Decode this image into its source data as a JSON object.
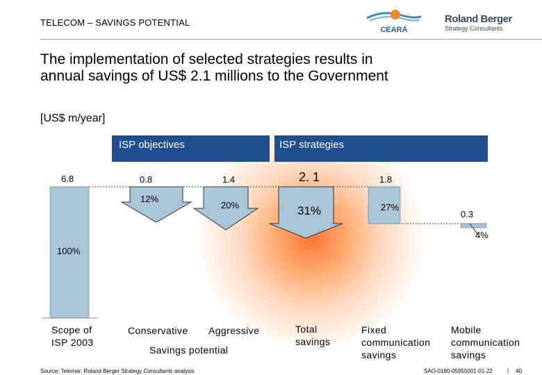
{
  "header": {
    "section_title": "TELECOM – SAVINGS POTENTIAL",
    "logo_ceara_text": "CEARÁ",
    "logo_rb_line1": "Roland Berger",
    "logo_rb_line2": "Strategy Consultants"
  },
  "headline": {
    "line1": "The implementation of selected strategies results in",
    "line2": "annual savings of US$ 2.1 millions to the Government"
  },
  "unit_label": "[US$ m/year]",
  "bands": {
    "objectives": "ISP objectives",
    "strategies": "ISP strategies"
  },
  "chart_data": {
    "type": "bar",
    "subtype": "waterfall",
    "unit": "[US$ m/year]",
    "categories": [
      "Scope of ISP 2003",
      "Conservative",
      "Aggressive",
      "Total savings",
      "Fixed communication savings",
      "Mobile communication savings"
    ],
    "values": [
      6.8,
      0.8,
      1.4,
      2.1,
      1.8,
      0.3
    ],
    "value_labels": [
      "6.8",
      "0.8",
      "1.4",
      "2. 1",
      "1.8",
      "0.3"
    ],
    "percent_labels": [
      "100%",
      "12%",
      "20%",
      "31%",
      "27%",
      "4%"
    ],
    "group_label": "Savings potential"
  },
  "labels": {
    "scope_line1": "Scope of",
    "scope_line2": "ISP 2003",
    "conservative": "Conservative",
    "aggressive": "Aggressive",
    "savings_potential": "Savings potential",
    "total_line1": "Total",
    "total_line2": "savings",
    "fixed_line1": "Fixed",
    "fixed_line2": "communication",
    "fixed_line3": "savings",
    "mobile_line1": "Mobile",
    "mobile_line2": "communication",
    "mobile_line3": "savings"
  },
  "footer": {
    "source": "Source: Telemar; Roland Berger Strategy Consultants analysis",
    "doc_id": "SAO-0180-05955001-01-22",
    "separator": "|",
    "page": "40"
  },
  "colors": {
    "band": "#1f4f8f",
    "bar_light": "#a9c6d9",
    "arrow_fill": "#a9c6d9",
    "glow": "#ff7a30"
  }
}
